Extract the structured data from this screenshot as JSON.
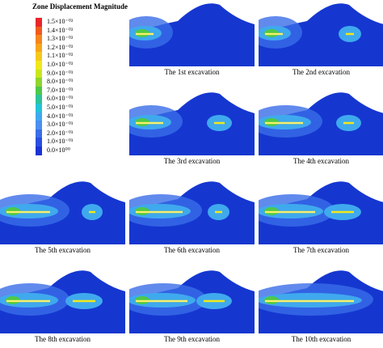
{
  "legend": {
    "title": "Zone Displacement Magnitude",
    "labels": [
      "1.5×10⁻⁰²",
      "1.4×10⁻⁰²",
      "1.3×10⁻⁰²",
      "1.2×10⁻⁰²",
      "1.1×10⁻⁰²",
      "1.0×10⁻⁰²",
      "9.0×10⁻⁰³",
      "8.0×10⁻⁰³",
      "7.0×10⁻⁰³",
      "6.0×10⁻⁰³",
      "5.0×10⁻⁰³",
      "4.0×10⁻⁰³",
      "3.0×10⁻⁰³",
      "2.0×10⁻⁰³",
      "1.0×10⁻⁰³",
      "0.0×10⁰⁰"
    ]
  },
  "panels": [
    {
      "caption": "The 1st excavation"
    },
    {
      "caption": "The 2nd excavation"
    },
    {
      "caption": "The 3rd excavation"
    },
    {
      "caption": "The 4th excavation"
    },
    {
      "caption": "The 5th excavation"
    },
    {
      "caption": "The 6th excavation"
    },
    {
      "caption": "The 7th excavation"
    },
    {
      "caption": "The 8th excavation"
    },
    {
      "caption": "The 9th excavation"
    },
    {
      "caption": "The 10th excavation"
    }
  ]
}
